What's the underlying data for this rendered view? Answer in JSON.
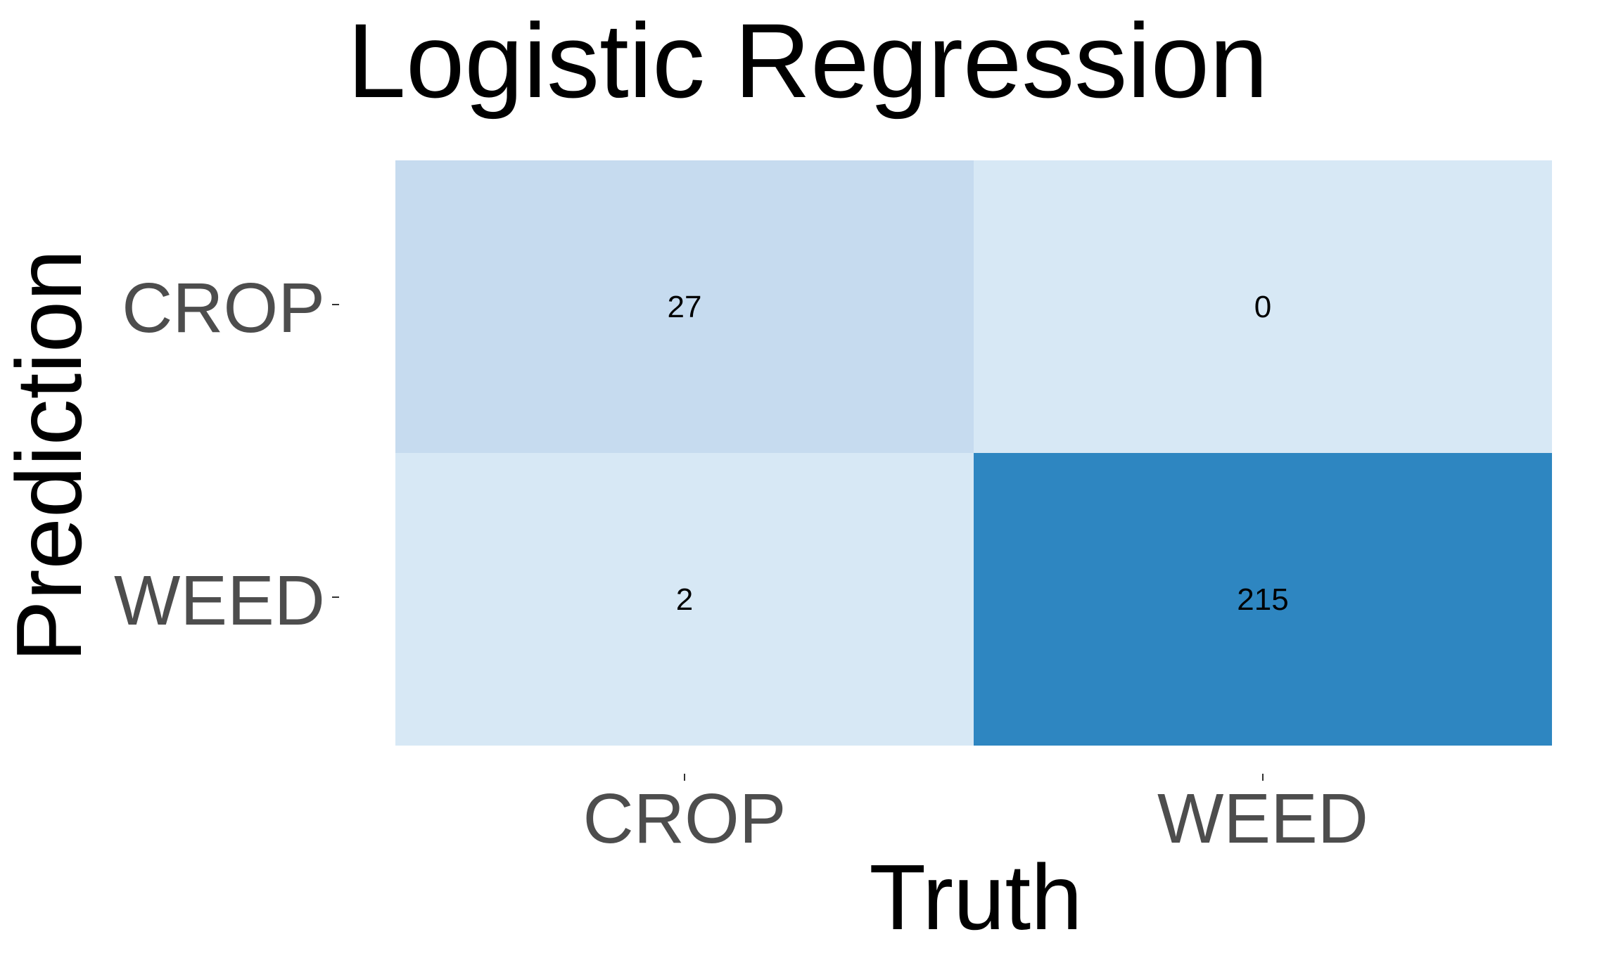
{
  "chart_data": {
    "type": "heatmap",
    "title": "Logistic Regression",
    "xlabel": "Truth",
    "ylabel": "Prediction",
    "x_categories": [
      "CROP",
      "WEED"
    ],
    "y_categories": [
      "CROP",
      "WEED"
    ],
    "cells": [
      {
        "row": "CROP",
        "col": "CROP",
        "value": 27,
        "label": "27",
        "color": "#c6dbef"
      },
      {
        "row": "CROP",
        "col": "WEED",
        "value": 0,
        "label": "0",
        "color": "#d7e8f5"
      },
      {
        "row": "WEED",
        "col": "CROP",
        "value": 2,
        "label": "2",
        "color": "#d7e8f5"
      },
      {
        "row": "WEED",
        "col": "WEED",
        "value": 215,
        "label": "215",
        "color": "#2e86c1"
      }
    ],
    "color_scale": {
      "low": "#d7e8f5",
      "high": "#2e86c1"
    },
    "legend": "none",
    "grid": false
  }
}
